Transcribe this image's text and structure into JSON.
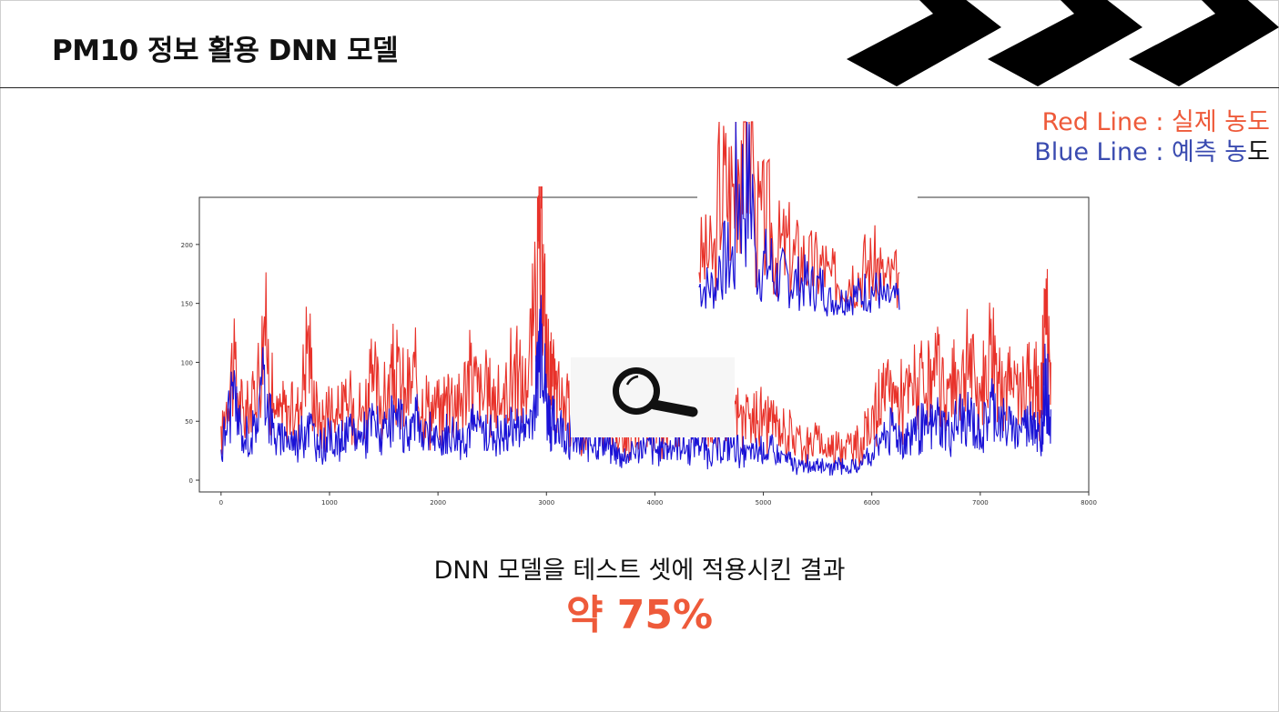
{
  "header": {
    "title": "PM10 정보 활용 DNN 모델"
  },
  "legend_note": {
    "red_prefix": "Red Line : ",
    "red_suffix": "실제 농도",
    "blue_text": "Blue Line : 예측 농",
    "blue_tail": "도"
  },
  "caption": "DNN 모델을 테스트 셋에 적용시킨 결과",
  "result": "약 75%",
  "colors": {
    "actual": "#e8322a",
    "predicted": "#1a12d6",
    "accent": "#ee5a3a"
  },
  "icons": {
    "decor": "chevron-arrows-icon",
    "zoom": "magnifier-icon"
  },
  "chart_data": {
    "type": "line",
    "xlim": [
      -200,
      8000
    ],
    "ylim": [
      -10,
      240
    ],
    "xticks": [
      0,
      1000,
      2000,
      3000,
      4000,
      5000,
      6000,
      7000,
      8000
    ],
    "yticks": [
      0,
      50,
      100,
      150,
      200
    ],
    "x": [
      0,
      100,
      200,
      300,
      400,
      500,
      600,
      700,
      800,
      900,
      1000,
      1100,
      1200,
      1300,
      1400,
      1500,
      1600,
      1700,
      1800,
      1900,
      2000,
      2100,
      2200,
      2300,
      2400,
      2500,
      2600,
      2700,
      2800,
      2900,
      2950,
      3000,
      3050,
      3100,
      3200,
      3300,
      3400,
      3500,
      3600,
      3700,
      3800,
      3900,
      4000,
      4100,
      4200,
      4300,
      4400,
      4500,
      4600,
      4700,
      4800,
      4900,
      5000,
      5100,
      5200,
      5300,
      5400,
      5500,
      5600,
      5700,
      5800,
      5900,
      6000,
      6100,
      6200,
      6300,
      6400,
      6500,
      6600,
      6700,
      6800,
      6900,
      7000,
      7100,
      7200,
      7300,
      7400,
      7500,
      7550,
      7600,
      7650
    ],
    "series": [
      {
        "name": "Red Line",
        "values": [
          40,
          115,
          60,
          75,
          145,
          55,
          70,
          60,
          130,
          50,
          70,
          60,
          75,
          65,
          95,
          70,
          100,
          80,
          95,
          70,
          60,
          85,
          75,
          100,
          80,
          80,
          75,
          105,
          80,
          160,
          230,
          120,
          90,
          80,
          70,
          55,
          60,
          70,
          55,
          40,
          50,
          60,
          50,
          55,
          65,
          60,
          75,
          55,
          60,
          70,
          55,
          55,
          60,
          50,
          45,
          40,
          35,
          35,
          30,
          35,
          30,
          35,
          55,
          75,
          80,
          75,
          90,
          80,
          95,
          80,
          95,
          110,
          75,
          130,
          100,
          80,
          85,
          110,
          60,
          160,
          100
        ]
      },
      {
        "name": "Blue Line",
        "values": [
          25,
          80,
          40,
          45,
          95,
          35,
          40,
          35,
          55,
          30,
          40,
          35,
          45,
          40,
          55,
          40,
          55,
          45,
          55,
          45,
          35,
          45,
          40,
          50,
          45,
          45,
          40,
          55,
          45,
          75,
          155,
          70,
          55,
          50,
          45,
          30,
          35,
          40,
          30,
          20,
          25,
          35,
          25,
          30,
          35,
          30,
          40,
          25,
          30,
          35,
          25,
          25,
          30,
          25,
          20,
          15,
          15,
          15,
          10,
          15,
          10,
          15,
          25,
          40,
          45,
          40,
          50,
          45,
          55,
          45,
          55,
          60,
          40,
          70,
          55,
          45,
          50,
          60,
          35,
          95,
          60
        ]
      }
    ]
  }
}
